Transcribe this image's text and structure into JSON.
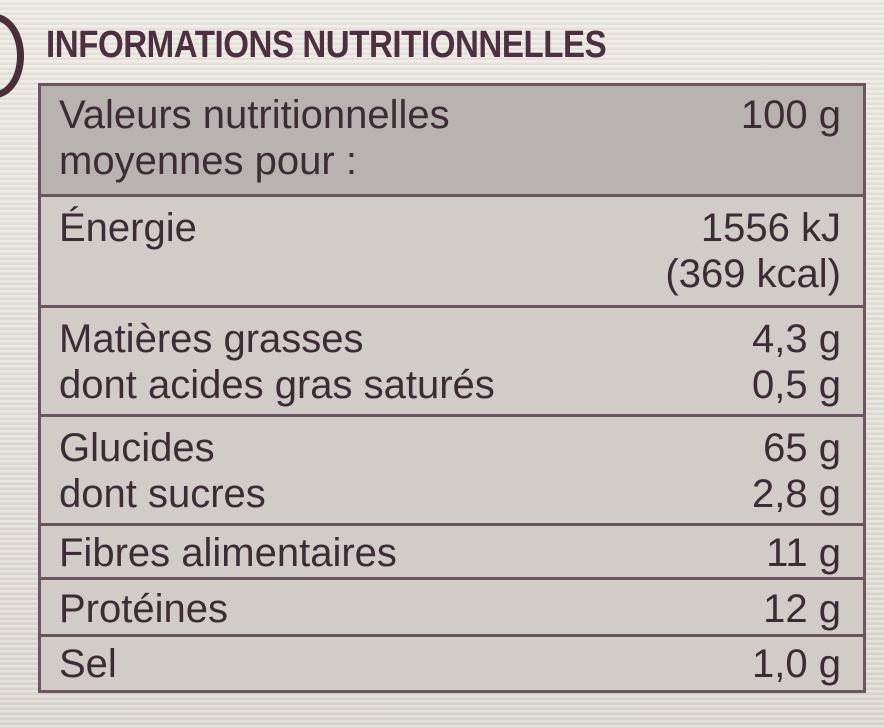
{
  "title": "INFORMATIONS NUTRITIONNELLES",
  "header": {
    "label_lines": [
      "Valeurs nutritionnelles",
      "moyennes pour :"
    ],
    "value": "100 g"
  },
  "rows": [
    {
      "label": [
        "Énergie"
      ],
      "values": [
        "1556 kJ",
        "(369 kcal)"
      ]
    },
    {
      "label": [
        "Matières grasses",
        "dont acides gras saturés"
      ],
      "values": [
        "4,3 g",
        "0,5 g"
      ]
    },
    {
      "label": [
        "Glucides",
        "dont sucres"
      ],
      "values": [
        "65 g",
        "2,8 g"
      ]
    },
    {
      "label": [
        "Fibres alimentaires"
      ],
      "values": [
        "11 g"
      ]
    },
    {
      "label": [
        "Protéines"
      ],
      "values": [
        "12 g"
      ]
    },
    {
      "label": [
        "Sel"
      ],
      "values": [
        "1,0 g"
      ]
    }
  ]
}
